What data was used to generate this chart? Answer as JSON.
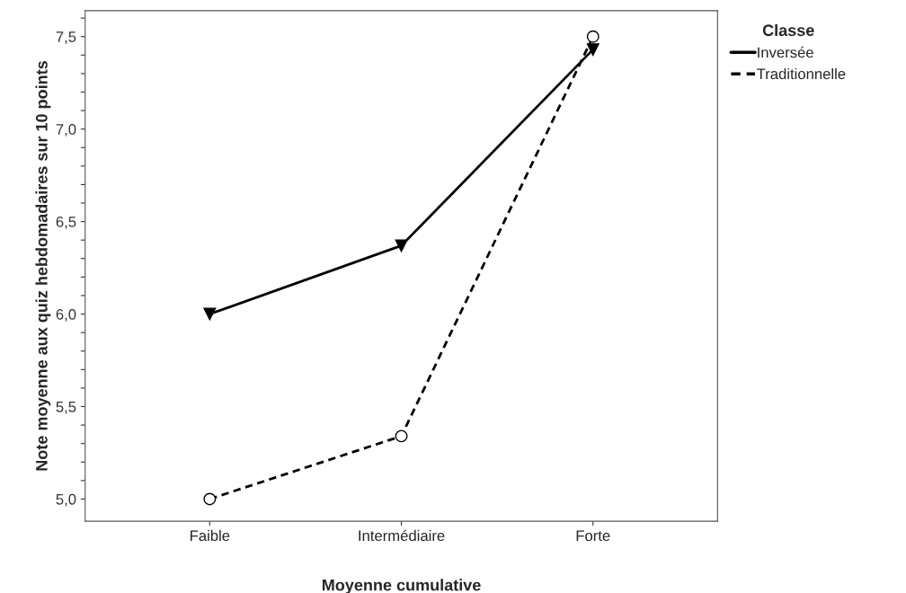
{
  "chart_data": {
    "type": "line",
    "xlabel": "Moyenne cumulative",
    "ylabel": "Note moyenne aux quiz hebdomadaires sur 10 points",
    "legend_title": "Classe",
    "legend": "top right",
    "grid": false,
    "categories": [
      "Faible",
      "Intermédiaire",
      "Forte"
    ],
    "series": [
      {
        "name": "Inversée",
        "color": "#000000",
        "values": [
          6.0,
          6.37,
          7.43
        ],
        "marker": "triangle",
        "line_style": "solid"
      },
      {
        "name": "Traditionnelle",
        "color": "#000000",
        "values": [
          5.0,
          5.34,
          7.5
        ],
        "marker": "circle",
        "line_style": "dashed"
      }
    ],
    "ylim": [
      4.88,
      7.64
    ],
    "yticks": [
      {
        "value": 5.0,
        "label": "5,0"
      },
      {
        "value": 5.1,
        "label": null
      },
      {
        "value": 5.2,
        "label": null
      },
      {
        "value": 5.3,
        "label": null
      },
      {
        "value": 5.4,
        "label": null
      },
      {
        "value": 5.5,
        "label": "5,5"
      },
      {
        "value": 5.6,
        "label": null
      },
      {
        "value": 5.7,
        "label": null
      },
      {
        "value": 5.8,
        "label": null
      },
      {
        "value": 5.9,
        "label": null
      },
      {
        "value": 6.0,
        "label": "6,0"
      },
      {
        "value": 6.1,
        "label": null
      },
      {
        "value": 6.2,
        "label": null
      },
      {
        "value": 6.3,
        "label": null
      },
      {
        "value": 6.4,
        "label": null
      },
      {
        "value": 6.5,
        "label": "6,5"
      },
      {
        "value": 6.6,
        "label": null
      },
      {
        "value": 6.7,
        "label": null
      },
      {
        "value": 6.8,
        "label": null
      },
      {
        "value": 6.9,
        "label": null
      },
      {
        "value": 7.0,
        "label": "7,0"
      },
      {
        "value": 7.1,
        "label": null
      },
      {
        "value": 7.2,
        "label": null
      },
      {
        "value": 7.3,
        "label": null
      },
      {
        "value": 7.4,
        "label": null
      },
      {
        "value": 7.5,
        "label": "7,5"
      },
      {
        "value": 7.6,
        "label": null
      }
    ]
  }
}
